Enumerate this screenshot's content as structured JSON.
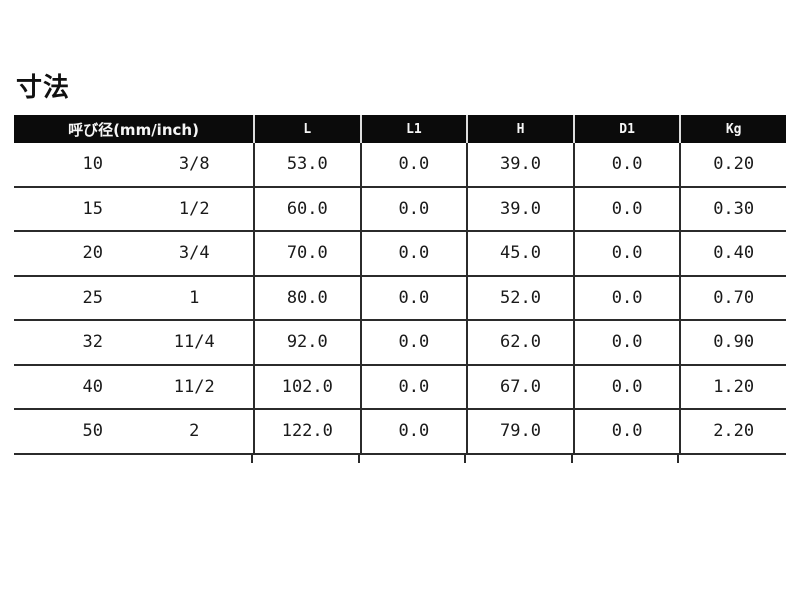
{
  "page": {
    "title": "寸法"
  },
  "table": {
    "headers": {
      "size": "呼び径(mm/inch)",
      "cols": [
        "L",
        "L1",
        "H",
        "D1",
        "Kg"
      ]
    },
    "rows": [
      {
        "mm": "10",
        "inch": "3/8",
        "values": [
          "53.0",
          "0.0",
          "39.0",
          "0.0",
          "0.20"
        ]
      },
      {
        "mm": "15",
        "inch": "1/2",
        "values": [
          "60.0",
          "0.0",
          "39.0",
          "0.0",
          "0.30"
        ]
      },
      {
        "mm": "20",
        "inch": "3/4",
        "values": [
          "70.0",
          "0.0",
          "45.0",
          "0.0",
          "0.40"
        ]
      },
      {
        "mm": "25",
        "inch": "1",
        "values": [
          "80.0",
          "0.0",
          "52.0",
          "0.0",
          "0.70"
        ]
      },
      {
        "mm": "32",
        "inch": "11/4",
        "values": [
          "92.0",
          "0.0",
          "62.0",
          "0.0",
          "0.90"
        ]
      },
      {
        "mm": "40",
        "inch": "11/2",
        "values": [
          "102.0",
          "0.0",
          "67.0",
          "0.0",
          "1.20"
        ]
      },
      {
        "mm": "50",
        "inch": "2",
        "values": [
          "122.0",
          "0.0",
          "79.0",
          "0.0",
          "2.20"
        ]
      }
    ]
  },
  "colors": {
    "header_bg": "#0b0b0b",
    "header_text": "#f6f6f6",
    "header_divider": "#dedede",
    "grid_line": "#2b2b2b",
    "body_text": "#1a1a1a",
    "title_text": "#111111",
    "page_bg": "#ffffff"
  }
}
